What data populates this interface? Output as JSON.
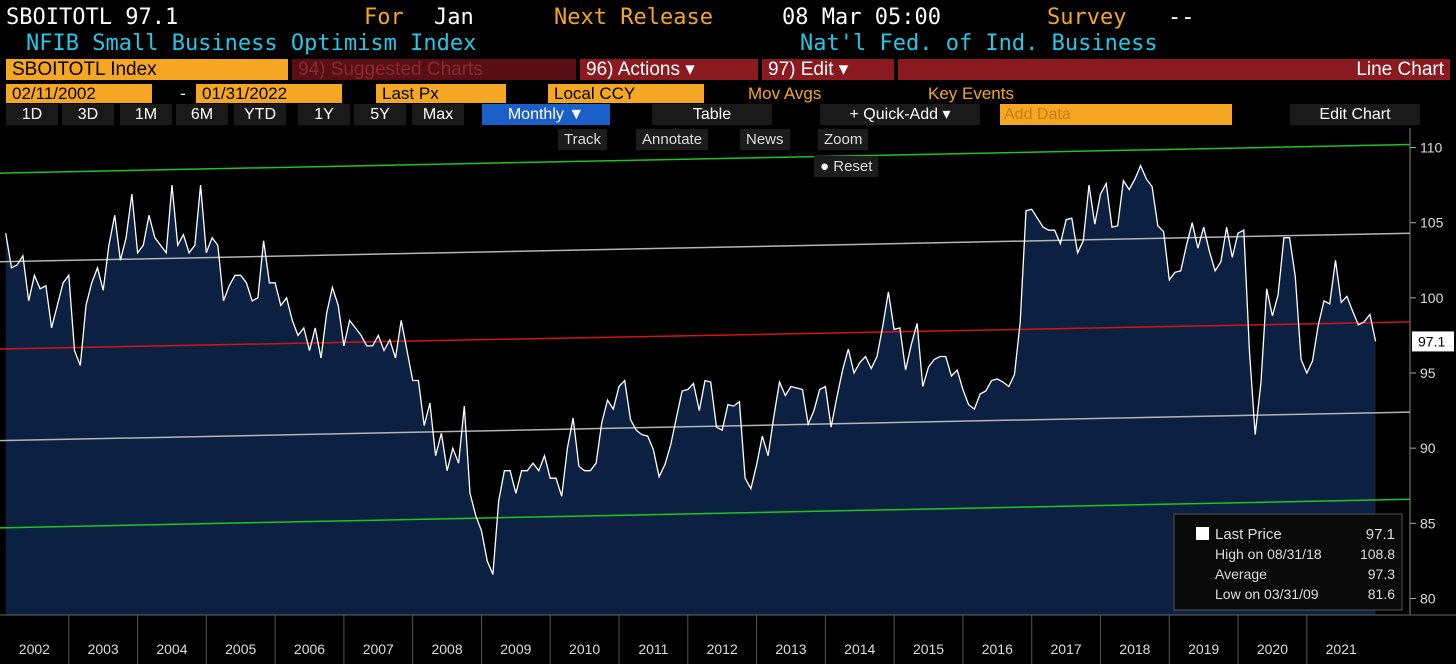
{
  "header": {
    "ticker": "SBOITOTL 97.1",
    "for_label": "For",
    "for_value": "Jan",
    "release_label": "Next Release",
    "release_value": "08 Mar 05:00",
    "survey_label": "Survey",
    "survey_value": "--",
    "name": "NFIB Small Business Optimism Index",
    "source": "Nat'l Fed. of Ind. Business"
  },
  "toolbar": {
    "security": "SBOITOTL Index",
    "suggested": "94) Suggested Charts",
    "actions": "96) Actions ▾",
    "edit": "97) Edit ▾",
    "chart_type": "Line Chart",
    "start_date": "02/11/2002",
    "end_date": "01/31/2022",
    "field": "Last Px",
    "currency": "Local CCY",
    "mov_avgs": "Mov Avgs",
    "key_events": "Key Events",
    "ranges": [
      "1D",
      "3D",
      "1M",
      "6M",
      "YTD",
      "1Y",
      "5Y",
      "Max"
    ],
    "period": "Monthly ▼",
    "table": "Table",
    "quick_add": "+ Quick-Add ▾",
    "add_data": "Add Data",
    "edit_chart": "Edit Chart",
    "tools": [
      "Track",
      "Annotate",
      "News",
      "Zoom"
    ],
    "reset": "Reset"
  },
  "chart_data": {
    "type": "line",
    "xlim": [
      2002,
      2022.5
    ],
    "ylim": [
      78.9,
      111.3
    ],
    "xticks": [
      2002,
      2003,
      2004,
      2005,
      2006,
      2007,
      2008,
      2009,
      2010,
      2011,
      2012,
      2013,
      2014,
      2015,
      2016,
      2017,
      2018,
      2019,
      2020,
      2021
    ],
    "yticks": [
      80,
      85,
      90,
      95,
      100,
      105,
      110
    ],
    "x": [
      2002.083,
      2002.167,
      2002.25,
      2002.333,
      2002.417,
      2002.5,
      2002.583,
      2002.667,
      2002.75,
      2002.833,
      2002.917,
      2003.0,
      2003.083,
      2003.167,
      2003.25,
      2003.333,
      2003.417,
      2003.5,
      2003.583,
      2003.667,
      2003.75,
      2003.833,
      2003.917,
      2004.0,
      2004.083,
      2004.167,
      2004.25,
      2004.333,
      2004.417,
      2004.5,
      2004.583,
      2004.667,
      2004.75,
      2004.833,
      2004.917,
      2005.0,
      2005.083,
      2005.167,
      2005.25,
      2005.333,
      2005.417,
      2005.5,
      2005.583,
      2005.667,
      2005.75,
      2005.833,
      2005.917,
      2006.0,
      2006.083,
      2006.167,
      2006.25,
      2006.333,
      2006.417,
      2006.5,
      2006.583,
      2006.667,
      2006.75,
      2006.833,
      2006.917,
      2007.0,
      2007.083,
      2007.167,
      2007.25,
      2007.333,
      2007.417,
      2007.5,
      2007.583,
      2007.667,
      2007.75,
      2007.833,
      2007.917,
      2008.0,
      2008.083,
      2008.167,
      2008.25,
      2008.333,
      2008.417,
      2008.5,
      2008.583,
      2008.667,
      2008.75,
      2008.833,
      2008.917,
      2009.0,
      2009.083,
      2009.167,
      2009.25,
      2009.333,
      2009.417,
      2009.5,
      2009.583,
      2009.667,
      2009.75,
      2009.833,
      2009.917,
      2010.0,
      2010.083,
      2010.167,
      2010.25,
      2010.333,
      2010.417,
      2010.5,
      2010.583,
      2010.667,
      2010.75,
      2010.833,
      2010.917,
      2011.0,
      2011.083,
      2011.167,
      2011.25,
      2011.333,
      2011.417,
      2011.5,
      2011.583,
      2011.667,
      2011.75,
      2011.833,
      2011.917,
      2012.0,
      2012.083,
      2012.167,
      2012.25,
      2012.333,
      2012.417,
      2012.5,
      2012.583,
      2012.667,
      2012.75,
      2012.833,
      2012.917,
      2013.0,
      2013.083,
      2013.167,
      2013.25,
      2013.333,
      2013.417,
      2013.5,
      2013.583,
      2013.667,
      2013.75,
      2013.833,
      2013.917,
      2014.0,
      2014.083,
      2014.167,
      2014.25,
      2014.333,
      2014.417,
      2014.5,
      2014.583,
      2014.667,
      2014.75,
      2014.833,
      2014.917,
      2015.0,
      2015.083,
      2015.167,
      2015.25,
      2015.333,
      2015.417,
      2015.5,
      2015.583,
      2015.667,
      2015.75,
      2015.833,
      2015.917,
      2016.0,
      2016.083,
      2016.167,
      2016.25,
      2016.333,
      2016.417,
      2016.5,
      2016.583,
      2016.667,
      2016.75,
      2016.833,
      2016.917,
      2017.0,
      2017.083,
      2017.167,
      2017.25,
      2017.333,
      2017.417,
      2017.5,
      2017.583,
      2017.667,
      2017.75,
      2017.833,
      2017.917,
      2018.0,
      2018.083,
      2018.167,
      2018.25,
      2018.333,
      2018.417,
      2018.5,
      2018.583,
      2018.667,
      2018.75,
      2018.833,
      2018.917,
      2019.0,
      2019.083,
      2019.167,
      2019.25,
      2019.333,
      2019.417,
      2019.5,
      2019.583,
      2019.667,
      2019.75,
      2019.833,
      2019.917,
      2020.0,
      2020.083,
      2020.167,
      2020.25,
      2020.333,
      2020.417,
      2020.5,
      2020.583,
      2020.667,
      2020.75,
      2020.833,
      2020.917,
      2021.0,
      2021.083,
      2021.167,
      2021.25,
      2021.333,
      2021.417,
      2021.5,
      2021.583,
      2021.667,
      2021.75,
      2021.833,
      2021.917,
      2022.0
    ],
    "series": [
      {
        "color": "#ffffff",
        "fill": "#0c2142",
        "values": [
          104.3,
          102.0,
          102.2,
          102.8,
          99.8,
          101.5,
          100.6,
          100.8,
          98.0,
          99.5,
          101.0,
          101.5,
          96.5,
          95.5,
          99.5,
          101.0,
          102.0,
          100.5,
          103.5,
          105.5,
          102.5,
          104.0,
          106.9,
          103.0,
          103.5,
          105.5,
          104.0,
          103.5,
          103.0,
          107.5,
          103.5,
          104.2,
          103.0,
          103.5,
          107.5,
          103.0,
          104.0,
          103.5,
          99.8,
          100.8,
          101.5,
          101.5,
          101.0,
          99.8,
          100.0,
          103.8,
          101.0,
          101.0,
          99.5,
          100.0,
          98.5,
          97.5,
          98.0,
          96.5,
          98.0,
          96.0,
          99.0,
          100.7,
          99.5,
          96.8,
          98.5,
          98.0,
          97.5,
          96.8,
          96.8,
          97.5,
          96.5,
          97.2,
          96.0,
          98.5,
          96.5,
          94.5,
          94.5,
          91.5,
          93.0,
          89.5,
          91.0,
          88.5,
          90.0,
          89.0,
          92.8,
          87.0,
          85.5,
          84.5,
          82.5,
          81.6,
          86.5,
          88.5,
          88.5,
          87.0,
          88.5,
          88.5,
          89.0,
          88.5,
          89.5,
          88.0,
          88.0,
          86.8,
          90.0,
          92.0,
          88.8,
          88.5,
          88.5,
          89.0,
          91.7,
          93.2,
          92.6,
          94.1,
          94.5,
          91.9,
          91.2,
          90.9,
          90.8,
          89.9,
          88.1,
          88.9,
          90.2,
          92.0,
          93.8,
          93.9,
          94.3,
          92.5,
          94.5,
          94.4,
          91.4,
          91.2,
          92.9,
          92.8,
          93.1,
          88.0,
          87.3,
          88.9,
          90.8,
          89.5,
          92.1,
          94.4,
          93.5,
          94.1,
          94.0,
          93.9,
          91.6,
          92.5,
          93.9,
          94.1,
          91.4,
          93.4,
          95.2,
          96.6,
          95.0,
          95.7,
          96.1,
          95.3,
          96.1,
          98.1,
          100.4,
          97.9,
          98.0,
          95.2,
          96.9,
          98.3,
          94.1,
          95.4,
          95.9,
          96.1,
          96.1,
          94.8,
          95.2,
          93.9,
          92.9,
          92.6,
          93.6,
          93.8,
          94.5,
          94.6,
          94.4,
          94.1,
          94.9,
          98.4,
          105.8,
          105.9,
          105.3,
          104.7,
          104.5,
          104.5,
          103.6,
          105.2,
          105.3,
          103.0,
          103.8,
          107.5,
          104.9,
          106.9,
          107.6,
          104.7,
          104.8,
          107.8,
          107.2,
          107.9,
          108.8,
          107.9,
          107.4,
          104.8,
          104.4,
          101.2,
          101.7,
          101.8,
          103.5,
          105.0,
          103.3,
          104.7,
          103.1,
          101.8,
          102.4,
          104.7,
          102.7,
          104.3,
          104.5,
          96.4,
          90.9,
          94.4,
          100.6,
          98.8,
          100.2,
          104.0,
          104.0,
          101.4,
          95.9,
          95.0,
          95.8,
          98.2,
          99.8,
          99.6,
          102.5,
          99.7,
          100.1,
          99.1,
          98.2,
          98.4,
          98.9,
          97.1
        ]
      }
    ],
    "trend_lines": [
      {
        "color": "#1fc41f",
        "values": [
          108.3,
          110.2
        ]
      },
      {
        "color": "#b4b4b4",
        "values": [
          102.4,
          104.3
        ]
      },
      {
        "color": "#d41414",
        "values": [
          96.6,
          98.4
        ]
      },
      {
        "color": "#b4b4b4",
        "values": [
          90.5,
          92.4
        ]
      },
      {
        "color": "#1fc41f",
        "values": [
          84.7,
          86.6
        ]
      }
    ],
    "legend": [
      {
        "label": "Last Price",
        "value": 97.1
      },
      {
        "label": "High on 08/31/18",
        "value": 108.8
      },
      {
        "label": "Average",
        "value": 97.3
      },
      {
        "label": "Low on 03/31/09",
        "value": 81.6
      }
    ]
  }
}
